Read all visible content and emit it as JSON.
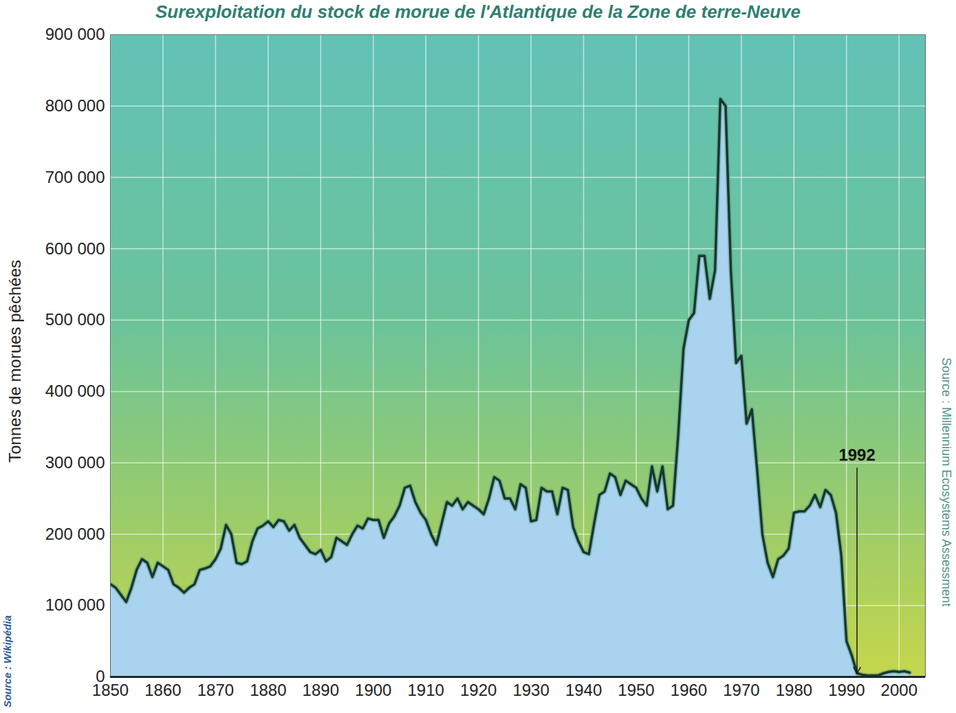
{
  "chart_data": {
    "type": "area",
    "title": "Surexploitation du stock de morue de l'Atlantique de la Zone de terre-Neuve",
    "y_label": "Tonnes de morues pêchées",
    "x": [
      1850,
      1851,
      1852,
      1853,
      1854,
      1855,
      1856,
      1857,
      1858,
      1859,
      1860,
      1861,
      1862,
      1863,
      1864,
      1865,
      1866,
      1867,
      1868,
      1869,
      1870,
      1871,
      1872,
      1873,
      1874,
      1875,
      1876,
      1877,
      1878,
      1879,
      1880,
      1881,
      1882,
      1883,
      1884,
      1885,
      1886,
      1887,
      1888,
      1889,
      1890,
      1891,
      1892,
      1893,
      1894,
      1895,
      1896,
      1897,
      1898,
      1899,
      1900,
      1901,
      1902,
      1903,
      1904,
      1905,
      1906,
      1907,
      1908,
      1909,
      1910,
      1911,
      1912,
      1913,
      1914,
      1915,
      1916,
      1917,
      1918,
      1919,
      1920,
      1921,
      1922,
      1923,
      1924,
      1925,
      1926,
      1927,
      1928,
      1929,
      1930,
      1931,
      1932,
      1933,
      1934,
      1935,
      1936,
      1937,
      1938,
      1939,
      1940,
      1941,
      1942,
      1943,
      1944,
      1945,
      1946,
      1947,
      1948,
      1949,
      1950,
      1951,
      1952,
      1953,
      1954,
      1955,
      1956,
      1957,
      1958,
      1959,
      1960,
      1961,
      1962,
      1963,
      1964,
      1965,
      1966,
      1967,
      1968,
      1969,
      1970,
      1971,
      1972,
      1973,
      1974,
      1975,
      1976,
      1977,
      1978,
      1979,
      1980,
      1981,
      1982,
      1983,
      1984,
      1985,
      1986,
      1987,
      1988,
      1989,
      1990,
      1991,
      1992,
      1993,
      1994,
      1995,
      1996,
      1997,
      1998,
      1999,
      2000,
      2001,
      2002
    ],
    "values": [
      130000,
      125000,
      115000,
      105000,
      125000,
      150000,
      165000,
      160000,
      140000,
      160000,
      155000,
      150000,
      130000,
      125000,
      118000,
      125000,
      130000,
      150000,
      152000,
      155000,
      165000,
      180000,
      213000,
      200000,
      160000,
      158000,
      162000,
      190000,
      208000,
      212000,
      218000,
      210000,
      220000,
      218000,
      205000,
      213000,
      195000,
      185000,
      175000,
      172000,
      178000,
      162000,
      168000,
      195000,
      190000,
      185000,
      200000,
      212000,
      208000,
      222000,
      220000,
      220000,
      195000,
      215000,
      225000,
      240000,
      265000,
      268000,
      245000,
      230000,
      220000,
      200000,
      185000,
      215000,
      245000,
      240000,
      250000,
      235000,
      245000,
      240000,
      235000,
      228000,
      250000,
      280000,
      275000,
      250000,
      250000,
      235000,
      270000,
      265000,
      218000,
      220000,
      265000,
      260000,
      260000,
      228000,
      265000,
      262000,
      210000,
      190000,
      175000,
      172000,
      215000,
      255000,
      260000,
      285000,
      280000,
      255000,
      275000,
      270000,
      265000,
      250000,
      240000,
      295000,
      260000,
      295000,
      235000,
      240000,
      340000,
      460000,
      500000,
      510000,
      590000,
      590000,
      530000,
      570000,
      810000,
      800000,
      570000,
      440000,
      450000,
      355000,
      375000,
      290000,
      200000,
      160000,
      140000,
      165000,
      170000,
      180000,
      230000,
      232000,
      232000,
      240000,
      255000,
      238000,
      262000,
      255000,
      230000,
      170000,
      50000,
      30000,
      5000,
      3000,
      2000,
      2000,
      2000,
      5000,
      7000,
      8000,
      7000,
      8000,
      6000
    ],
    "color": "#a9d3ef",
    "xlim": [
      1850,
      2005
    ],
    "xticks": [
      1850,
      1860,
      1870,
      1880,
      1890,
      1900,
      1910,
      1920,
      1930,
      1940,
      1950,
      1960,
      1970,
      1980,
      1990,
      2000
    ],
    "ylim": [
      0,
      900000
    ],
    "yticks": [
      0,
      {
        "value": 100000,
        "label": "100 000"
      },
      {
        "value": 200000,
        "label": "200 000"
      },
      {
        "value": 300000,
        "label": "300 000"
      },
      {
        "value": 400000,
        "label": "400 000"
      },
      {
        "value": 500000,
        "label": "500 000"
      },
      {
        "value": 600000,
        "label": "600 000"
      },
      {
        "value": 700000,
        "label": "700 000"
      },
      {
        "value": 800000,
        "label": "800 000"
      },
      {
        "value": 900000,
        "label": "900 000"
      }
    ],
    "grid": true,
    "annotations": [
      {
        "text": "1992",
        "x": 1992,
        "y": 310000
      }
    ],
    "source": "Source : Millennium Ecosystems Assessment",
    "credit": "Source : Wikipédia"
  }
}
